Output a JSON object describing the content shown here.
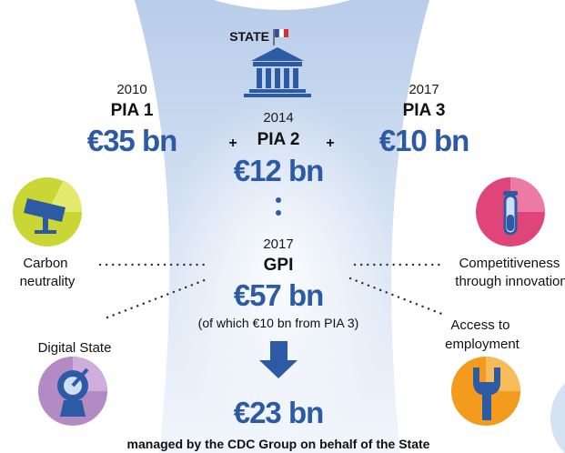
{
  "header": {
    "title": "STATE"
  },
  "programmes": [
    {
      "year": "2010",
      "name": "PIA 1",
      "amount": "€35 bn"
    },
    {
      "year": "2014",
      "name": "PIA 2",
      "amount": "€12 bn"
    },
    {
      "year": "2017",
      "name": "PIA 3",
      "amount": "€10 bn"
    }
  ],
  "operators": [
    "+",
    "+"
  ],
  "total": {
    "year": "2017",
    "name": "GPI",
    "amount": "€57 bn",
    "note": "(of which €10 bn from PIA 3)"
  },
  "priorities": [
    {
      "lines": [
        "Carbon",
        "neutrality"
      ]
    },
    {
      "lines": [
        "Digital State"
      ]
    },
    {
      "lines": [
        "Competitiveness",
        "through innovation"
      ]
    },
    {
      "lines": [
        "Access to",
        "employment"
      ]
    }
  ],
  "managed": {
    "amount": "€23 bn",
    "caption": "managed by the CDC Group on behalf of the State"
  }
}
